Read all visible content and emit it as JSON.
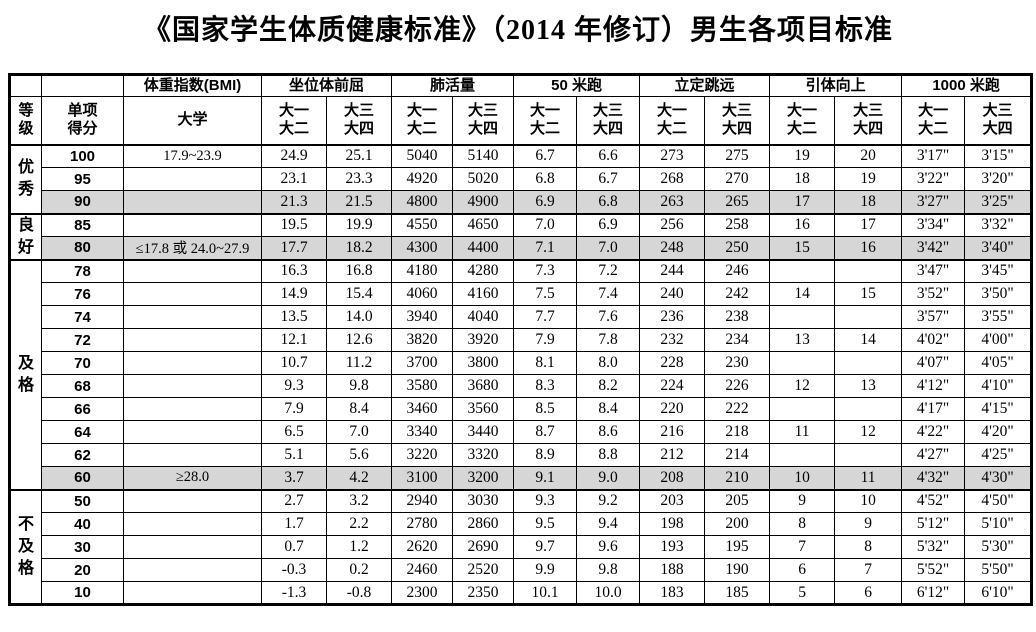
{
  "title": "《国家学生体质健康标准》（2014 年修订）男生各项目标准",
  "colors": {
    "row_shade": "#d6d6d6",
    "border": "#000000",
    "background": "#ffffff"
  },
  "header": {
    "grade": "等\n级",
    "score": "单项\n得分",
    "groups": [
      "体重指数(BMI)",
      "坐位体前屈",
      "肺活量",
      "50 米跑",
      "立定跳远",
      "引体向上",
      "1000 米跑"
    ],
    "bmi_sub": "大学",
    "pair": [
      "大一\n大二",
      "大三\n大四"
    ]
  },
  "sections": [
    {
      "label": "优\n秀",
      "rows": [
        {
          "score": "100",
          "bmi": "17.9~23.9",
          "shaded": false,
          "values": [
            "24.9",
            "25.1",
            "5040",
            "5140",
            "6.7",
            "6.6",
            "273",
            "275",
            "19",
            "20",
            "3'17\"",
            "3'15\""
          ]
        },
        {
          "score": "95",
          "bmi": "",
          "shaded": false,
          "values": [
            "23.1",
            "23.3",
            "4920",
            "5020",
            "6.8",
            "6.7",
            "268",
            "270",
            "18",
            "19",
            "3'22\"",
            "3'20\""
          ]
        },
        {
          "score": "90",
          "bmi": "",
          "shaded": true,
          "values": [
            "21.3",
            "21.5",
            "4800",
            "4900",
            "6.9",
            "6.8",
            "263",
            "265",
            "17",
            "18",
            "3'27\"",
            "3'25\""
          ]
        }
      ]
    },
    {
      "label": "良\n好",
      "rows": [
        {
          "score": "85",
          "bmi": "",
          "shaded": false,
          "values": [
            "19.5",
            "19.9",
            "4550",
            "4650",
            "7.0",
            "6.9",
            "256",
            "258",
            "16",
            "17",
            "3'34\"",
            "3'32\""
          ]
        },
        {
          "score": "80",
          "bmi": "≤17.8 或 24.0~27.9",
          "shaded": true,
          "values": [
            "17.7",
            "18.2",
            "4300",
            "4400",
            "7.1",
            "7.0",
            "248",
            "250",
            "15",
            "16",
            "3'42\"",
            "3'40\""
          ]
        }
      ]
    },
    {
      "label": "及\n格",
      "rows": [
        {
          "score": "78",
          "bmi": "",
          "shaded": false,
          "values": [
            "16.3",
            "16.8",
            "4180",
            "4280",
            "7.3",
            "7.2",
            "244",
            "246",
            "",
            "",
            "3'47\"",
            "3'45\""
          ]
        },
        {
          "score": "76",
          "bmi": "",
          "shaded": false,
          "values": [
            "14.9",
            "15.4",
            "4060",
            "4160",
            "7.5",
            "7.4",
            "240",
            "242",
            "14",
            "15",
            "3'52\"",
            "3'50\""
          ]
        },
        {
          "score": "74",
          "bmi": "",
          "shaded": false,
          "values": [
            "13.5",
            "14.0",
            "3940",
            "4040",
            "7.7",
            "7.6",
            "236",
            "238",
            "",
            "",
            "3'57\"",
            "3'55\""
          ]
        },
        {
          "score": "72",
          "bmi": "",
          "shaded": false,
          "values": [
            "12.1",
            "12.6",
            "3820",
            "3920",
            "7.9",
            "7.8",
            "232",
            "234",
            "13",
            "14",
            "4'02\"",
            "4'00\""
          ]
        },
        {
          "score": "70",
          "bmi": "",
          "shaded": false,
          "values": [
            "10.7",
            "11.2",
            "3700",
            "3800",
            "8.1",
            "8.0",
            "228",
            "230",
            "",
            "",
            "4'07\"",
            "4'05\""
          ]
        },
        {
          "score": "68",
          "bmi": "",
          "shaded": false,
          "values": [
            "9.3",
            "9.8",
            "3580",
            "3680",
            "8.3",
            "8.2",
            "224",
            "226",
            "12",
            "13",
            "4'12\"",
            "4'10\""
          ]
        },
        {
          "score": "66",
          "bmi": "",
          "shaded": false,
          "values": [
            "7.9",
            "8.4",
            "3460",
            "3560",
            "8.5",
            "8.4",
            "220",
            "222",
            "",
            "",
            "4'17\"",
            "4'15\""
          ]
        },
        {
          "score": "64",
          "bmi": "",
          "shaded": false,
          "values": [
            "6.5",
            "7.0",
            "3340",
            "3440",
            "8.7",
            "8.6",
            "216",
            "218",
            "11",
            "12",
            "4'22\"",
            "4'20\""
          ]
        },
        {
          "score": "62",
          "bmi": "",
          "shaded": false,
          "values": [
            "5.1",
            "5.6",
            "3220",
            "3320",
            "8.9",
            "8.8",
            "212",
            "214",
            "",
            "",
            "4'27\"",
            "4'25\""
          ]
        },
        {
          "score": "60",
          "bmi": "≥28.0",
          "shaded": true,
          "values": [
            "3.7",
            "4.2",
            "3100",
            "3200",
            "9.1",
            "9.0",
            "208",
            "210",
            "10",
            "11",
            "4'32\"",
            "4'30\""
          ]
        }
      ]
    },
    {
      "label": "不\n及\n格",
      "rows": [
        {
          "score": "50",
          "bmi": "",
          "shaded": false,
          "values": [
            "2.7",
            "3.2",
            "2940",
            "3030",
            "9.3",
            "9.2",
            "203",
            "205",
            "9",
            "10",
            "4'52\"",
            "4'50\""
          ]
        },
        {
          "score": "40",
          "bmi": "",
          "shaded": false,
          "values": [
            "1.7",
            "2.2",
            "2780",
            "2860",
            "9.5",
            "9.4",
            "198",
            "200",
            "8",
            "9",
            "5'12\"",
            "5'10\""
          ]
        },
        {
          "score": "30",
          "bmi": "",
          "shaded": false,
          "values": [
            "0.7",
            "1.2",
            "2620",
            "2690",
            "9.7",
            "9.6",
            "193",
            "195",
            "7",
            "8",
            "5'32\"",
            "5'30\""
          ]
        },
        {
          "score": "20",
          "bmi": "",
          "shaded": false,
          "values": [
            "-0.3",
            "0.2",
            "2460",
            "2520",
            "9.9",
            "9.8",
            "188",
            "190",
            "6",
            "7",
            "5'52\"",
            "5'50\""
          ]
        },
        {
          "score": "10",
          "bmi": "",
          "shaded": false,
          "values": [
            "-1.3",
            "-0.8",
            "2300",
            "2350",
            "10.1",
            "10.0",
            "183",
            "185",
            "5",
            "6",
            "6'12\"",
            "6'10\""
          ]
        }
      ]
    }
  ]
}
